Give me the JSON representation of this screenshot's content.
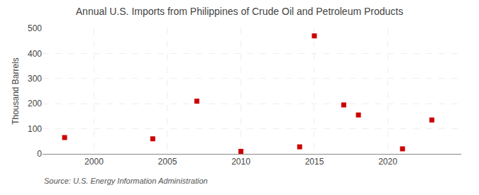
{
  "chart_data": {
    "type": "scatter",
    "title": "Annual U.S. Imports from Philippines of Crude Oil and Petroleum Products",
    "ylabel": "Thousand Barrels",
    "annotations": [
      "Source: U.S. Energy Information Administration"
    ],
    "x": [
      1998,
      2004,
      2007,
      2010,
      2014,
      2015,
      2017,
      2018,
      2021,
      2023
    ],
    "values": [
      65,
      60,
      210,
      10,
      28,
      470,
      195,
      155,
      20,
      135
    ],
    "color": "#cc0000",
    "marker": "square",
    "xlim": [
      1996.5,
      2025
    ],
    "ylim": [
      0,
      500
    ],
    "xticks": [
      2000,
      2005,
      2010,
      2015,
      2020
    ],
    "yticks": [
      0,
      100,
      200,
      300,
      400,
      500
    ],
    "grid": true
  }
}
